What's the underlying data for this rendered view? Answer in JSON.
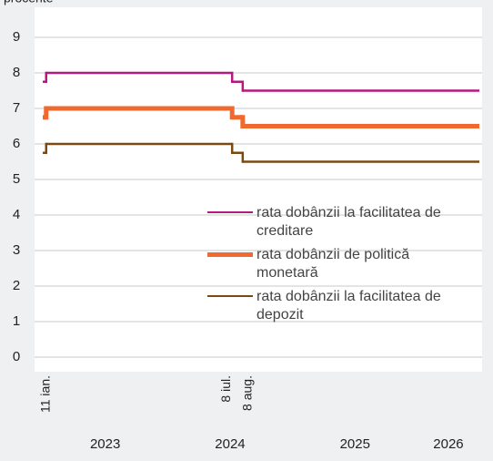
{
  "chart_data": {
    "type": "step-line",
    "unit_label": "procente",
    "x": [
      "2023-01-01",
      "2023-01-11",
      "2024-07-08",
      "2024-08-08"
    ],
    "xlim": [
      "2023-01-01",
      "2026-07-01"
    ],
    "xticks": [
      2023,
      2024,
      2025,
      2026
    ],
    "ylim": [
      0,
      9
    ],
    "yticks": [
      0,
      1,
      2,
      3,
      4,
      5,
      6,
      7,
      8,
      9
    ],
    "grid": true,
    "legend": "right",
    "series": [
      {
        "name": "rata dobânzii la facilitatea de creditare",
        "color": "#b5187f",
        "width": 2.5,
        "values": [
          7.75,
          8,
          7.75,
          7.5
        ]
      },
      {
        "name": "rata dobânzii de politică monetară",
        "color": "#f0692f",
        "width": 5,
        "values": [
          6.75,
          7,
          6.75,
          6.5
        ]
      },
      {
        "name": "rata dobânzii la facilitatea de depozit",
        "color": "#7a4a12",
        "width": 2.5,
        "values": [
          5.75,
          6,
          5.75,
          5.5
        ]
      }
    ],
    "annotations": [
      {
        "text": "11 ian.",
        "x": "2023-01-11"
      },
      {
        "text": "8 iul.",
        "x": "2024-07-08"
      },
      {
        "text": "8 aug.",
        "x": "2024-08-08"
      }
    ]
  }
}
